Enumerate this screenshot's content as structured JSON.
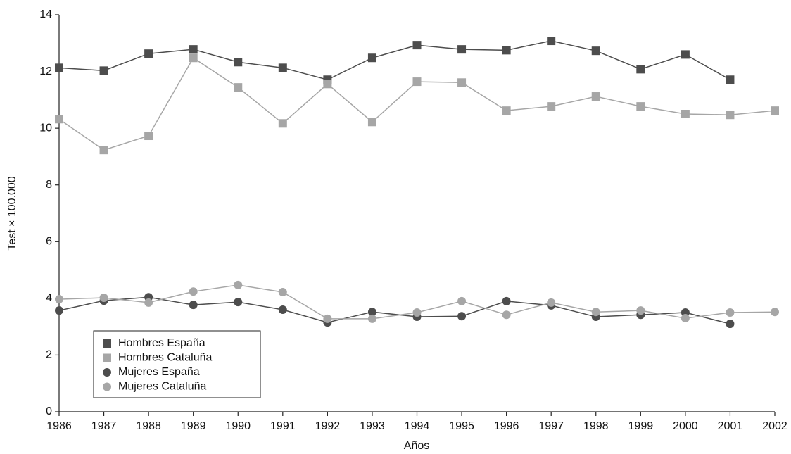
{
  "chart_data": {
    "type": "line",
    "x": [
      1986,
      1987,
      1988,
      1989,
      1990,
      1991,
      1992,
      1993,
      1994,
      1995,
      1996,
      1997,
      1998,
      1999,
      2000,
      2001,
      2002
    ],
    "xlim": [
      1986,
      2002
    ],
    "xticks": [
      1986,
      1987,
      1988,
      1989,
      1990,
      1991,
      1992,
      1993,
      1994,
      1995,
      1996,
      1997,
      1998,
      1999,
      2000,
      2001,
      2002
    ],
    "ylim": [
      0,
      14
    ],
    "yticks": [
      0,
      2,
      4,
      6,
      8,
      10,
      12,
      14
    ],
    "x_label": "Años",
    "y_label": "Test × 100.000",
    "legend": "lower-left",
    "series": [
      {
        "name": "Hombres España",
        "color": "#4d4d4d",
        "marker": "square",
        "values": [
          12.13,
          12.03,
          12.63,
          12.78,
          12.33,
          12.13,
          11.71,
          12.48,
          12.93,
          12.78,
          12.75,
          13.08,
          12.73,
          12.08,
          12.6,
          11.71,
          null
        ]
      },
      {
        "name": "Hombres Cataluña",
        "color": "#a6a6a6",
        "marker": "square",
        "values": [
          10.32,
          9.23,
          9.73,
          12.48,
          11.44,
          10.17,
          11.56,
          10.22,
          11.64,
          11.61,
          10.62,
          10.77,
          11.12,
          10.77,
          10.5,
          10.47,
          10.62
        ]
      },
      {
        "name": "Mujeres España",
        "color": "#4d4d4d",
        "marker": "circle",
        "values": [
          3.57,
          3.92,
          4.04,
          3.77,
          3.87,
          3.6,
          3.15,
          3.52,
          3.35,
          3.37,
          3.9,
          3.75,
          3.35,
          3.42,
          3.5,
          3.1,
          null
        ]
      },
      {
        "name": "Mujeres Cataluña",
        "color": "#a6a6a6",
        "marker": "circle",
        "values": [
          3.97,
          4.02,
          3.85,
          4.24,
          4.47,
          4.22,
          3.28,
          3.28,
          3.5,
          3.9,
          3.42,
          3.85,
          3.52,
          3.57,
          3.3,
          3.5,
          3.52
        ]
      }
    ]
  }
}
